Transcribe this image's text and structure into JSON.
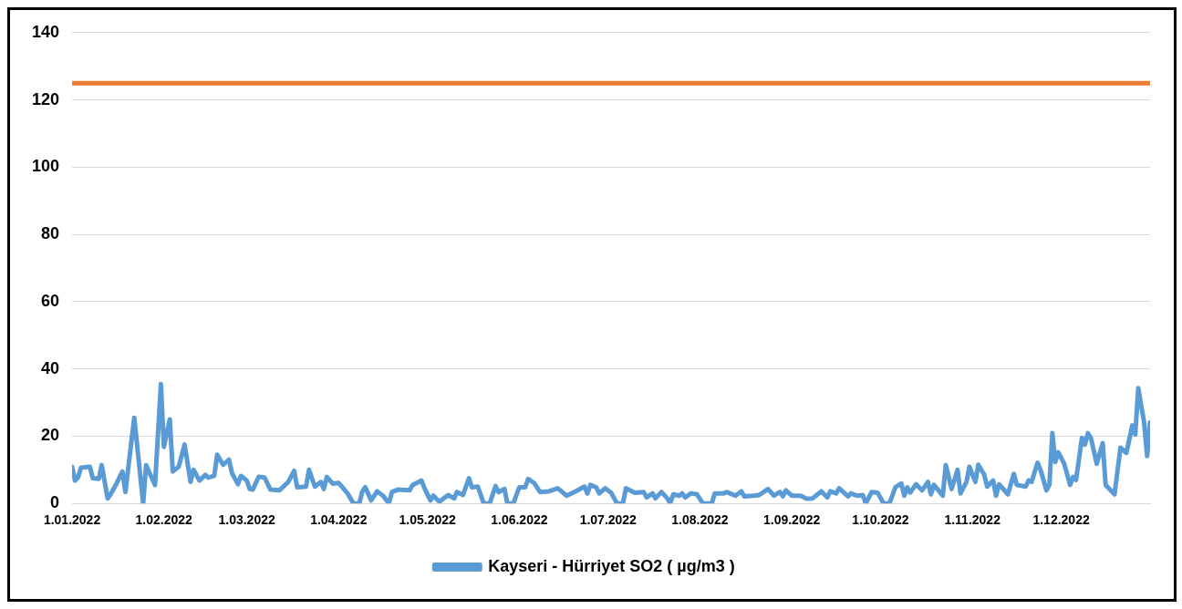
{
  "chart_data": {
    "type": "line",
    "x": [
      "2022-01-01",
      "2022-01-02",
      "2022-01-03",
      "2022-01-04",
      "2022-01-07",
      "2022-01-08",
      "2022-01-10",
      "2022-01-11",
      "2022-01-13",
      "2022-01-14",
      "2022-01-16",
      "2022-01-18",
      "2022-01-19",
      "2022-01-22",
      "2022-01-25",
      "2022-01-26",
      "2022-01-29",
      "2022-01-31",
      "2022-02-01",
      "2022-02-03",
      "2022-02-04",
      "2022-02-06",
      "2022-02-08",
      "2022-02-10",
      "2022-02-11",
      "2022-02-13",
      "2022-02-15",
      "2022-02-16",
      "2022-02-18",
      "2022-02-19",
      "2022-02-21",
      "2022-02-23",
      "2022-02-24",
      "2022-02-26",
      "2022-02-27",
      "2022-03-01",
      "2022-03-02",
      "2022-03-03",
      "2022-03-05",
      "2022-03-07",
      "2022-03-09",
      "2022-03-12",
      "2022-03-15",
      "2022-03-17",
      "2022-03-18",
      "2022-03-21",
      "2022-03-22",
      "2022-03-24",
      "2022-03-26",
      "2022-03-27",
      "2022-03-28",
      "2022-03-30",
      "2022-04-01",
      "2022-04-04",
      "2022-04-06",
      "2022-04-08",
      "2022-04-09",
      "2022-04-10",
      "2022-04-12",
      "2022-04-14",
      "2022-04-16",
      "2022-04-18",
      "2022-04-19",
      "2022-04-21",
      "2022-04-25",
      "2022-04-26",
      "2022-04-29",
      "2022-04-30",
      "2022-05-02",
      "2022-05-03",
      "2022-05-05",
      "2022-05-08",
      "2022-05-10",
      "2022-05-11",
      "2022-05-13",
      "2022-05-15",
      "2022-05-16",
      "2022-05-18",
      "2022-05-20",
      "2022-05-22",
      "2022-05-24",
      "2022-05-25",
      "2022-05-27",
      "2022-05-28",
      "2022-05-30",
      "2022-06-01",
      "2022-06-03",
      "2022-06-04",
      "2022-06-06",
      "2022-06-08",
      "2022-06-11",
      "2022-06-14",
      "2022-06-17",
      "2022-06-20",
      "2022-06-23",
      "2022-06-24",
      "2022-06-25",
      "2022-06-27",
      "2022-06-28",
      "2022-06-30",
      "2022-07-02",
      "2022-07-04",
      "2022-07-06",
      "2022-07-07",
      "2022-07-10",
      "2022-07-13",
      "2022-07-14",
      "2022-07-16",
      "2022-07-17",
      "2022-07-19",
      "2022-07-21",
      "2022-07-22",
      "2022-07-23",
      "2022-07-25",
      "2022-07-26",
      "2022-07-27",
      "2022-07-29",
      "2022-07-31",
      "2022-08-02",
      "2022-08-05",
      "2022-08-06",
      "2022-08-09",
      "2022-08-10",
      "2022-08-13",
      "2022-08-15",
      "2022-08-16",
      "2022-08-19",
      "2022-08-21",
      "2022-08-24",
      "2022-08-26",
      "2022-08-28",
      "2022-08-29",
      "2022-08-30",
      "2022-09-01",
      "2022-09-04",
      "2022-09-06",
      "2022-09-08",
      "2022-09-11",
      "2022-09-13",
      "2022-09-14",
      "2022-09-16",
      "2022-09-17",
      "2022-09-20",
      "2022-09-21",
      "2022-09-23",
      "2022-09-25",
      "2022-09-26",
      "2022-09-28",
      "2022-09-30",
      "2022-10-02",
      "2022-10-04",
      "2022-10-06",
      "2022-10-08",
      "2022-10-09",
      "2022-10-10",
      "2022-10-11",
      "2022-10-13",
      "2022-10-15",
      "2022-10-17",
      "2022-10-18",
      "2022-10-19",
      "2022-10-22",
      "2022-10-23",
      "2022-10-25",
      "2022-10-27",
      "2022-10-28",
      "2022-10-30",
      "2022-10-31",
      "2022-11-02",
      "2022-11-03",
      "2022-11-05",
      "2022-11-06",
      "2022-11-08",
      "2022-11-09",
      "2022-11-10",
      "2022-11-13",
      "2022-11-15",
      "2022-11-16",
      "2022-11-19",
      "2022-11-20",
      "2022-11-21",
      "2022-11-23",
      "2022-11-24",
      "2022-11-26",
      "2022-11-27",
      "2022-11-28",
      "2022-11-29",
      "2022-11-30",
      "2022-12-02",
      "2022-12-04",
      "2022-12-05",
      "2022-12-06",
      "2022-12-08",
      "2022-12-09",
      "2022-12-10",
      "2022-12-11",
      "2022-12-13",
      "2022-12-15",
      "2022-12-16",
      "2022-12-19",
      "2022-12-21",
      "2022-12-23",
      "2022-12-25",
      "2022-12-26",
      "2022-12-27",
      "2022-12-29",
      "2022-12-30",
      "2022-12-31"
    ],
    "series": [
      {
        "name": "Kayseri - Hürriyet SO2 ( µg/m3 )",
        "color": "#5b9bd5",
        "values": [
          10.9,
          6.8,
          7.7,
          10.6,
          10.9,
          7.5,
          7.3,
          11.4,
          1.5,
          2.7,
          5.9,
          9.5,
          3.4,
          25.5,
          0,
          11.4,
          5.5,
          35.5,
          16.8,
          25,
          9.5,
          10.9,
          17.5,
          6.4,
          10,
          6.8,
          8.5,
          7.7,
          8.2,
          14.5,
          11.5,
          13,
          9,
          5.7,
          8.2,
          6.8,
          4.3,
          4.1,
          7.9,
          7.7,
          4.1,
          3.9,
          6.4,
          9.7,
          4.8,
          5,
          10,
          5,
          6.4,
          4.3,
          7.9,
          5.9,
          6.1,
          3,
          0,
          0,
          3.6,
          4.8,
          0.9,
          3.6,
          2.3,
          0,
          3.4,
          4.1,
          3.9,
          5.5,
          6.8,
          4.5,
          0.9,
          2.3,
          0.5,
          2.5,
          1.5,
          3.4,
          2.5,
          7.5,
          4.8,
          5,
          0,
          0,
          5.2,
          3.4,
          4.3,
          0,
          0,
          4.8,
          4.8,
          7.3,
          6.1,
          3.4,
          3.6,
          4.5,
          2.3,
          3.6,
          5,
          3,
          5.5,
          4.8,
          3,
          4.5,
          3.2,
          0,
          0,
          4.5,
          3.2,
          3.4,
          1.8,
          3,
          1.5,
          3.4,
          1.5,
          0,
          2.7,
          2.3,
          3,
          1.8,
          3,
          2.7,
          0,
          0,
          3,
          3,
          3.4,
          2.3,
          3.6,
          2.1,
          2.3,
          2.5,
          4.3,
          2.3,
          3.4,
          2.1,
          3.9,
          2.3,
          2.3,
          1.4,
          1.5,
          3.6,
          1.8,
          3.6,
          3,
          4.5,
          2.1,
          3,
          2.3,
          2.5,
          0,
          3.4,
          3.2,
          0,
          0,
          4.8,
          5.9,
          2.3,
          4.8,
          3.2,
          5.7,
          3.9,
          6.4,
          2.7,
          5.5,
          2.3,
          11.4,
          4.3,
          10,
          3,
          6.4,
          10.9,
          6.4,
          11.5,
          8.5,
          5,
          6.8,
          2.3,
          5.7,
          2.7,
          8.8,
          5.5,
          5,
          6.8,
          6.4,
          12.1,
          10,
          3.9,
          5.5,
          20.9,
          12.3,
          15.2,
          11.8,
          5.5,
          7.9,
          7,
          19.5,
          17.5,
          20.9,
          19.5,
          11.8,
          17.9,
          5.5,
          2.7,
          16.6,
          15,
          23.2,
          20.5,
          34.3,
          24,
          14.1,
          24.1
        ]
      }
    ],
    "ref_lines": [
      {
        "axis": "y",
        "value": 125,
        "color": "#ed7d31"
      }
    ],
    "xlim": [
      "2022-01-01",
      "2022-12-31"
    ],
    "xticks": [
      {
        "value": "2022-01-01",
        "label": "1.01.2022"
      },
      {
        "value": "2022-02-01",
        "label": "1.02.2022"
      },
      {
        "value": "2022-03-01",
        "label": "1.03.2022"
      },
      {
        "value": "2022-04-01",
        "label": "1.04.2022"
      },
      {
        "value": "2022-05-01",
        "label": "1.05.2022"
      },
      {
        "value": "2022-06-01",
        "label": "1.06.2022"
      },
      {
        "value": "2022-07-01",
        "label": "1.07.2022"
      },
      {
        "value": "2022-08-01",
        "label": "1.08.2022"
      },
      {
        "value": "2022-09-01",
        "label": "1.09.2022"
      },
      {
        "value": "2022-10-01",
        "label": "1.10.2022"
      },
      {
        "value": "2022-11-01",
        "label": "1.11.2022"
      },
      {
        "value": "2022-12-01",
        "label": "1.12.2022"
      }
    ],
    "ylim": [
      0,
      140
    ],
    "yticks": [
      0,
      20,
      40,
      60,
      80,
      100,
      120,
      140
    ],
    "grid": "y",
    "legend": "bottom",
    "marker": "none",
    "line_style": "solid"
  }
}
